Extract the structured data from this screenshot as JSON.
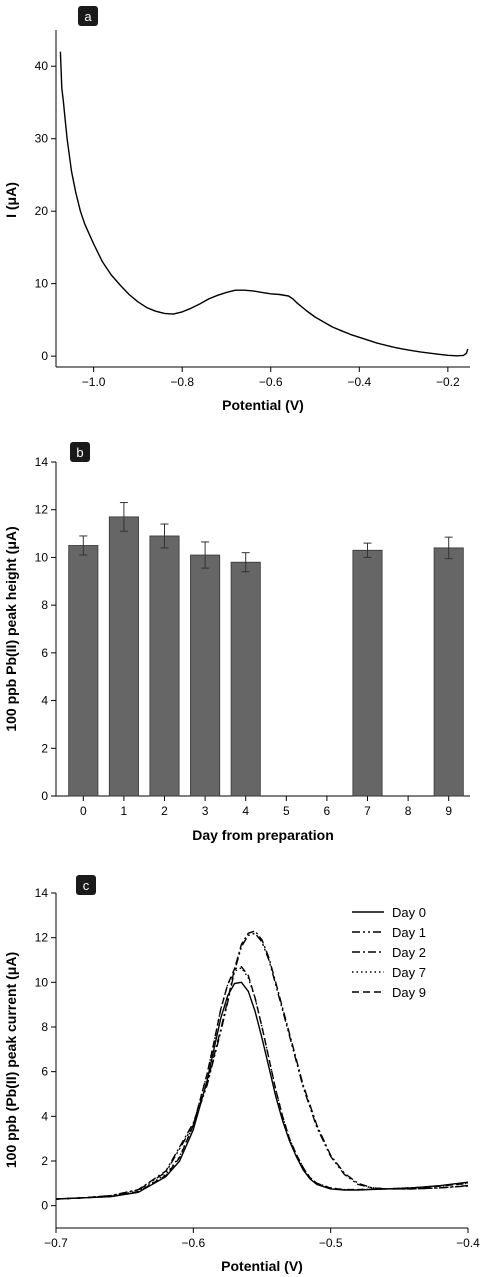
{
  "chart_data": [
    {
      "panel_label": "a",
      "type": "line",
      "xlabel": "Potential (V)",
      "ylabel": "I (μA)",
      "xlim": [
        -1.085,
        -0.15
      ],
      "ylim": [
        -1.5,
        45
      ],
      "xticks": [
        -1.0,
        -0.8,
        -0.6,
        -0.4,
        -0.2
      ],
      "xtick_labels": [
        "−1.0",
        "−0.8",
        "−0.6",
        "−0.4",
        "−0.2"
      ],
      "yticks": [
        0,
        10,
        20,
        30,
        40
      ],
      "ytick_labels": [
        "0",
        "10",
        "20",
        "30",
        "40"
      ],
      "series": [
        {
          "x": [
            -1.075,
            -1.072,
            -1.068,
            -1.065,
            -1.06,
            -1.05,
            -1.04,
            -1.03,
            -1.02,
            -1.0,
            -0.98,
            -0.96,
            -0.94,
            -0.92,
            -0.9,
            -0.88,
            -0.86,
            -0.84,
            -0.82,
            -0.8,
            -0.78,
            -0.76,
            -0.74,
            -0.72,
            -0.7,
            -0.68,
            -0.66,
            -0.64,
            -0.62,
            -0.6,
            -0.58,
            -0.56,
            -0.55,
            -0.54,
            -0.52,
            -0.5,
            -0.48,
            -0.46,
            -0.44,
            -0.42,
            -0.4,
            -0.38,
            -0.36,
            -0.34,
            -0.32,
            -0.3,
            -0.28,
            -0.26,
            -0.24,
            -0.22,
            -0.2,
            -0.18,
            -0.165,
            -0.158,
            -0.155
          ],
          "y": [
            42,
            37,
            35,
            33,
            30,
            25.5,
            22.5,
            20,
            18.2,
            15.5,
            13,
            11.2,
            9.8,
            8.5,
            7.5,
            6.7,
            6.2,
            5.9,
            5.8,
            6.1,
            6.6,
            7.2,
            7.9,
            8.4,
            8.8,
            9.1,
            9.1,
            9.0,
            8.8,
            8.6,
            8.5,
            8.3,
            7.9,
            7.3,
            6.3,
            5.4,
            4.7,
            4.0,
            3.5,
            3.0,
            2.6,
            2.2,
            1.8,
            1.5,
            1.2,
            0.95,
            0.75,
            0.55,
            0.4,
            0.25,
            0.12,
            0.05,
            0.1,
            0.4,
            1.0
          ]
        }
      ]
    },
    {
      "panel_label": "b",
      "type": "bar",
      "xlabel": "Day from preparation",
      "ylabel": "100 ppb Pb(II) peak height (μA)",
      "ylim": [
        0,
        14
      ],
      "yticks": [
        0,
        2,
        4,
        6,
        8,
        10,
        12,
        14
      ],
      "ytick_labels": [
        "0",
        "2",
        "4",
        "6",
        "8",
        "10",
        "12",
        "14"
      ],
      "categories": [
        "0",
        "1",
        "2",
        "3",
        "4",
        "5",
        "6",
        "7",
        "8",
        "9"
      ],
      "values": [
        10.5,
        11.7,
        10.9,
        10.1,
        9.8,
        null,
        null,
        10.3,
        null,
        10.4
      ],
      "errors": [
        0.4,
        0.6,
        0.5,
        0.55,
        0.4,
        null,
        null,
        0.3,
        null,
        0.45
      ],
      "bar_color": "#666666"
    },
    {
      "panel_label": "c",
      "type": "line",
      "xlabel": "Potential (V)",
      "ylabel": "100 ppb (Pb(II) peak current (μA)",
      "xlim": [
        -0.7,
        -0.4
      ],
      "ylim": [
        -1,
        14
      ],
      "xticks": [
        -0.7,
        -0.6,
        -0.5,
        -0.4
      ],
      "xtick_labels": [
        "−0.7",
        "−0.6",
        "−0.5",
        "−0.4"
      ],
      "yticks": [
        0,
        2,
        4,
        6,
        8,
        10,
        12,
        14
      ],
      "ytick_labels": [
        "0",
        "2",
        "4",
        "6",
        "8",
        "10",
        "12",
        "14"
      ],
      "legend_position": "top-right",
      "series": [
        {
          "name": "Day 0",
          "dash": "solid",
          "x": [
            -0.7,
            -0.68,
            -0.66,
            -0.64,
            -0.62,
            -0.61,
            -0.6,
            -0.59,
            -0.585,
            -0.58,
            -0.575,
            -0.57,
            -0.565,
            -0.56,
            -0.555,
            -0.55,
            -0.545,
            -0.54,
            -0.535,
            -0.53,
            -0.525,
            -0.52,
            -0.515,
            -0.51,
            -0.5,
            -0.49,
            -0.48,
            -0.46,
            -0.44,
            -0.42,
            -0.4
          ],
          "y": [
            0.3,
            0.35,
            0.4,
            0.6,
            1.3,
            2.0,
            3.4,
            5.6,
            7.0,
            8.4,
            9.4,
            9.95,
            10.0,
            9.6,
            8.7,
            7.5,
            6.2,
            4.9,
            3.8,
            2.9,
            2.2,
            1.6,
            1.2,
            0.95,
            0.75,
            0.7,
            0.7,
            0.75,
            0.8,
            0.9,
            1.05
          ]
        },
        {
          "name": "Day 1",
          "dash": "dash-dot-dot",
          "x": [
            -0.7,
            -0.68,
            -0.66,
            -0.64,
            -0.62,
            -0.6,
            -0.59,
            -0.58,
            -0.575,
            -0.57,
            -0.565,
            -0.56,
            -0.555,
            -0.55,
            -0.545,
            -0.54,
            -0.53,
            -0.52,
            -0.51,
            -0.5,
            -0.49,
            -0.48,
            -0.47,
            -0.46,
            -0.44,
            -0.42,
            -0.4
          ],
          "y": [
            0.3,
            0.35,
            0.45,
            0.7,
            1.5,
            3.6,
            5.4,
            7.8,
            9.1,
            10.5,
            11.6,
            12.1,
            12.2,
            11.8,
            11.0,
            9.9,
            7.6,
            5.3,
            3.5,
            2.2,
            1.4,
            0.95,
            0.8,
            0.75,
            0.75,
            0.8,
            0.9
          ]
        },
        {
          "name": "Day 2",
          "dash": "dash-dot",
          "x": [
            -0.7,
            -0.68,
            -0.66,
            -0.64,
            -0.62,
            -0.6,
            -0.59,
            -0.58,
            -0.575,
            -0.57,
            -0.565,
            -0.56,
            -0.555,
            -0.55,
            -0.545,
            -0.54,
            -0.53,
            -0.52,
            -0.51,
            -0.5,
            -0.49,
            -0.48,
            -0.47,
            -0.46,
            -0.44,
            -0.42,
            -0.4
          ],
          "y": [
            0.3,
            0.35,
            0.45,
            0.72,
            1.55,
            3.7,
            5.5,
            7.9,
            9.2,
            10.6,
            11.7,
            12.2,
            12.3,
            11.9,
            11.1,
            10.0,
            7.7,
            5.4,
            3.6,
            2.25,
            1.45,
            1.0,
            0.8,
            0.75,
            0.75,
            0.8,
            0.88
          ]
        },
        {
          "name": "Day 7",
          "dash": "dotted",
          "x": [
            -0.7,
            -0.68,
            -0.66,
            -0.64,
            -0.62,
            -0.61,
            -0.6,
            -0.59,
            -0.585,
            -0.58,
            -0.575,
            -0.57,
            -0.565,
            -0.56,
            -0.555,
            -0.55,
            -0.545,
            -0.54,
            -0.535,
            -0.53,
            -0.525,
            -0.52,
            -0.515,
            -0.51,
            -0.5,
            -0.49,
            -0.48,
            -0.46,
            -0.44,
            -0.42,
            -0.4
          ],
          "y": [
            0.3,
            0.35,
            0.42,
            0.65,
            1.4,
            2.2,
            3.6,
            5.9,
            7.3,
            8.8,
            9.9,
            10.5,
            10.65,
            10.2,
            9.3,
            8.0,
            6.6,
            5.2,
            4.0,
            3.0,
            2.3,
            1.7,
            1.25,
            1.0,
            0.8,
            0.72,
            0.72,
            0.75,
            0.8,
            0.88,
            1.0
          ]
        },
        {
          "name": "Day 9",
          "dash": "dashed",
          "x": [
            -0.7,
            -0.68,
            -0.66,
            -0.64,
            -0.62,
            -0.61,
            -0.6,
            -0.59,
            -0.585,
            -0.58,
            -0.575,
            -0.57,
            -0.565,
            -0.56,
            -0.555,
            -0.55,
            -0.545,
            -0.54,
            -0.535,
            -0.53,
            -0.525,
            -0.52,
            -0.515,
            -0.51,
            -0.5,
            -0.49,
            -0.48,
            -0.46,
            -0.44,
            -0.42,
            -0.4
          ],
          "y": [
            0.3,
            0.35,
            0.42,
            0.62,
            1.35,
            2.15,
            3.6,
            5.9,
            7.3,
            8.8,
            9.9,
            10.6,
            10.7,
            10.3,
            9.3,
            8.0,
            6.6,
            5.2,
            4.0,
            3.0,
            2.3,
            1.7,
            1.25,
            1.0,
            0.78,
            0.72,
            0.72,
            0.75,
            0.8,
            0.88,
            1.0
          ]
        }
      ]
    }
  ]
}
